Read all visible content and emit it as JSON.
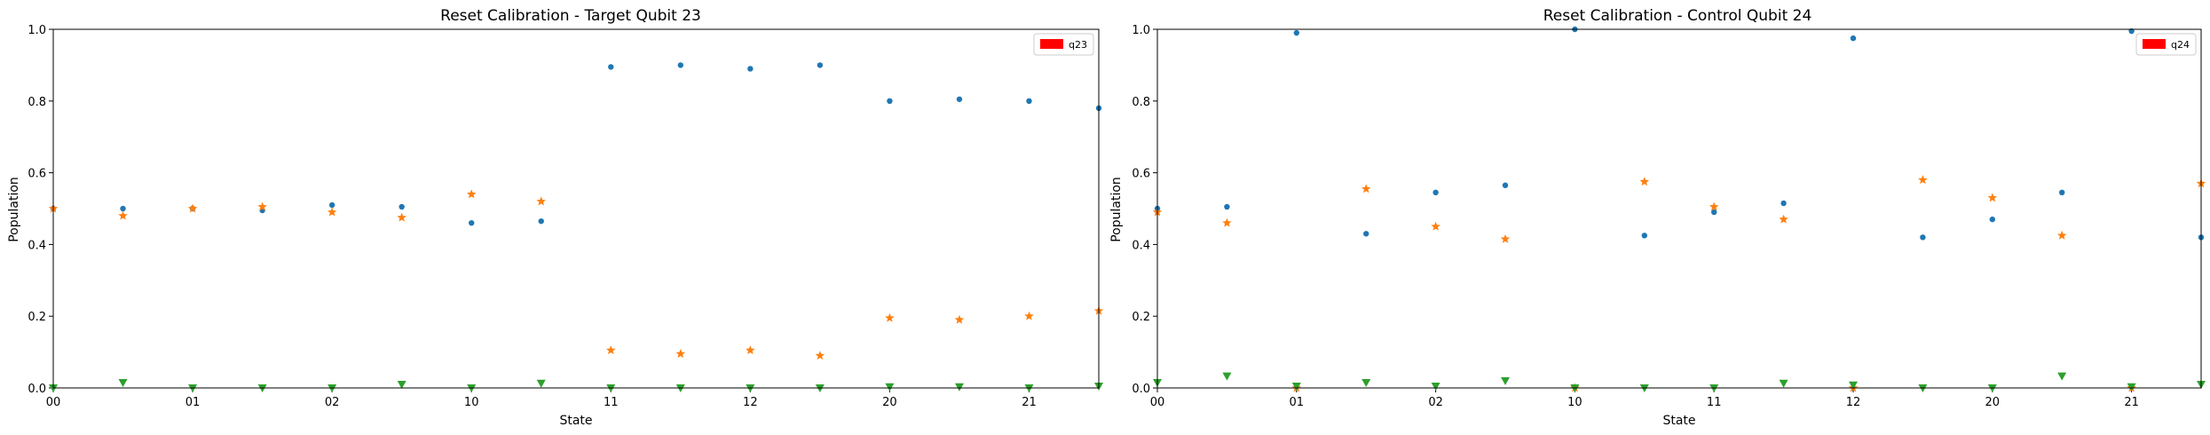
{
  "colors": {
    "blue": "#1f77b4",
    "orange": "#ff7f0e",
    "green": "#2ca02c",
    "legend_patch": "#ff0000"
  },
  "chart_data": [
    {
      "type": "scatter",
      "title": "Reset Calibration - Target Qubit 23",
      "xlabel": "State",
      "ylabel": "Population",
      "xticks": [
        "00",
        "01",
        "02",
        "10",
        "11",
        "12",
        "20",
        "21"
      ],
      "yticks": [
        "0.0",
        "0.2",
        "0.4",
        "0.6",
        "0.8",
        "1.0"
      ],
      "xlim": [
        0,
        7.5
      ],
      "ylim": [
        0,
        1
      ],
      "grid": false,
      "legend": {
        "entries": [
          "q23"
        ],
        "position": "top-right"
      },
      "x": [
        0,
        0.5,
        1,
        1.5,
        2,
        2.5,
        3,
        3.5,
        4,
        4.5,
        5,
        5.5,
        6,
        6.5,
        7,
        7.5
      ],
      "series": [
        {
          "marker": "dot",
          "color": "#1f77b4",
          "values": [
            0.5,
            0.5,
            0.5,
            0.495,
            0.51,
            0.505,
            0.46,
            0.465,
            0.895,
            0.9,
            0.89,
            0.9,
            0.8,
            0.805,
            0.8,
            0.78
          ]
        },
        {
          "marker": "star",
          "color": "#ff7f0e",
          "values": [
            0.5,
            0.48,
            0.5,
            0.505,
            0.49,
            0.475,
            0.54,
            0.52,
            0.105,
            0.095,
            0.105,
            0.09,
            0.195,
            0.19,
            0.2,
            0.215
          ]
        },
        {
          "marker": "triangle",
          "color": "#2ca02c",
          "values": [
            0.0,
            0.015,
            0.0,
            0.0,
            0.0,
            0.01,
            0.0,
            0.013,
            0.0,
            0.0,
            0.0,
            0.0,
            0.003,
            0.003,
            0.0,
            0.005
          ]
        }
      ]
    },
    {
      "type": "scatter",
      "title": "Reset Calibration - Control Qubit 24",
      "xlabel": "State",
      "ylabel": "Population",
      "xticks": [
        "00",
        "01",
        "02",
        "10",
        "11",
        "12",
        "20",
        "21"
      ],
      "yticks": [
        "0.0",
        "0.2",
        "0.4",
        "0.6",
        "0.8",
        "1.0"
      ],
      "xlim": [
        0,
        7.5
      ],
      "ylim": [
        0,
        1
      ],
      "grid": false,
      "legend": {
        "entries": [
          "q24"
        ],
        "position": "top-right"
      },
      "x": [
        0,
        0.5,
        1,
        1.5,
        2,
        2.5,
        3,
        3.5,
        4,
        4.5,
        5,
        5.5,
        6,
        6.5,
        7,
        7.5
      ],
      "series": [
        {
          "marker": "dot",
          "color": "#1f77b4",
          "values": [
            0.5,
            0.505,
            0.99,
            0.43,
            0.545,
            0.565,
            1.0,
            0.425,
            0.49,
            0.515,
            0.975,
            0.42,
            0.47,
            0.545,
            0.995,
            0.42
          ]
        },
        {
          "marker": "star",
          "color": "#ff7f0e",
          "values": [
            0.49,
            0.46,
            0.0,
            0.555,
            0.45,
            0.415,
            0.0,
            0.575,
            0.505,
            0.47,
            0.0,
            0.58,
            0.53,
            0.425,
            0.0,
            0.57
          ]
        },
        {
          "marker": "triangle",
          "color": "#2ca02c",
          "values": [
            0.015,
            0.033,
            0.005,
            0.015,
            0.005,
            0.02,
            0.0,
            0.0,
            0.0,
            0.013,
            0.008,
            0.0,
            0.0,
            0.033,
            0.003,
            0.01
          ]
        }
      ]
    }
  ]
}
